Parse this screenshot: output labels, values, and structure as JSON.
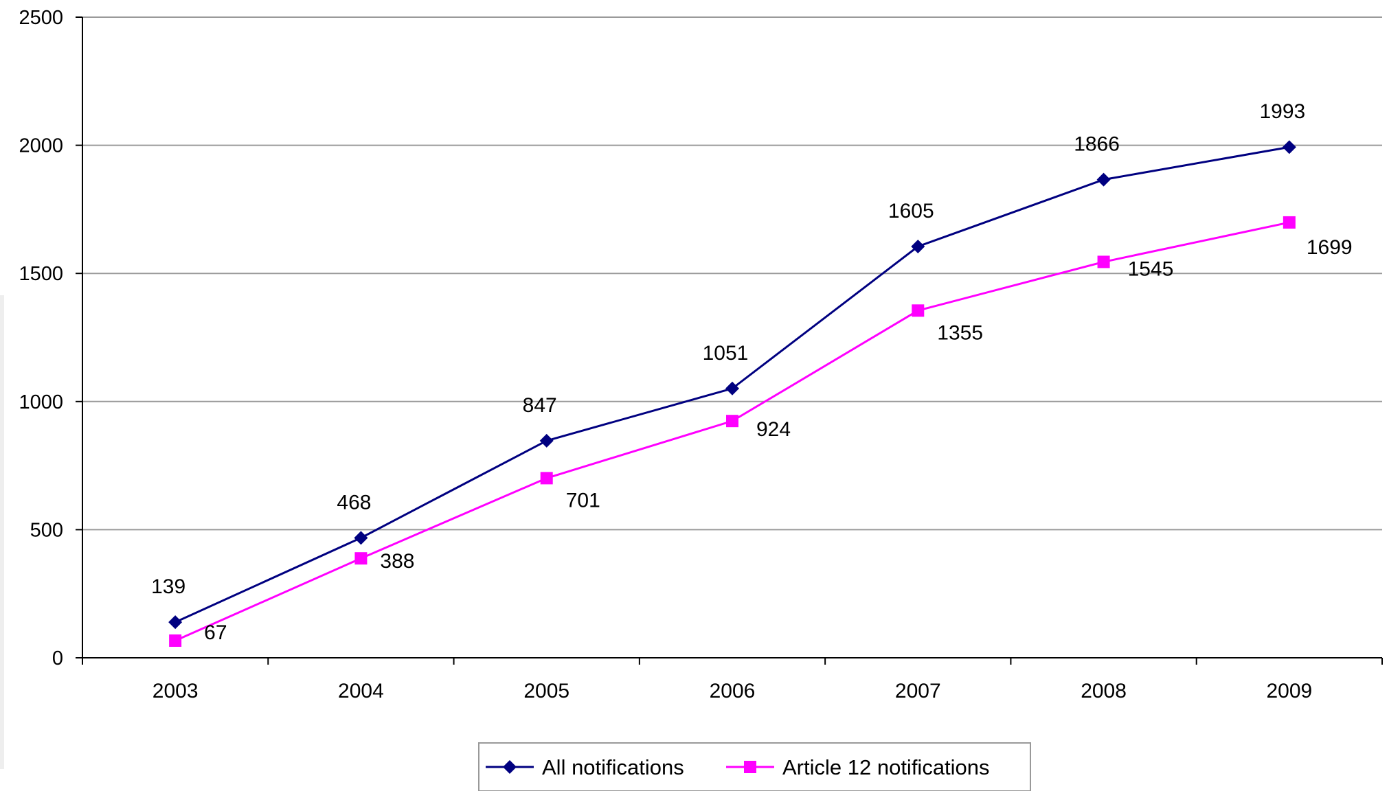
{
  "chart_data": {
    "type": "line",
    "title": "",
    "xlabel": "",
    "ylabel": "",
    "categories": [
      "2003",
      "2004",
      "2005",
      "2006",
      "2007",
      "2008",
      "2009"
    ],
    "ylim": [
      0,
      2500
    ],
    "yticks": [
      0,
      500,
      1000,
      1500,
      2000,
      2500
    ],
    "grid": true,
    "legend_position": "bottom",
    "series": [
      {
        "name": "All notifications",
        "values": [
          139,
          468,
          847,
          1051,
          1605,
          1866,
          1993
        ],
        "color": "#000080",
        "marker": "diamond",
        "labels": [
          "139",
          "468",
          "847",
          "1051",
          "1605",
          "1866",
          "1993"
        ]
      },
      {
        "name": "Article 12 notifications",
        "values": [
          67,
          388,
          701,
          924,
          1355,
          1545,
          1699
        ],
        "color": "#ff00ff",
        "marker": "square",
        "labels": [
          "67",
          "388",
          "701",
          "924",
          "1355",
          "1545",
          "1699"
        ]
      }
    ],
    "colors": {
      "axis": "#000000",
      "grid": "#9a9a9a",
      "text": "#000000",
      "legend_border": "#999999"
    }
  }
}
